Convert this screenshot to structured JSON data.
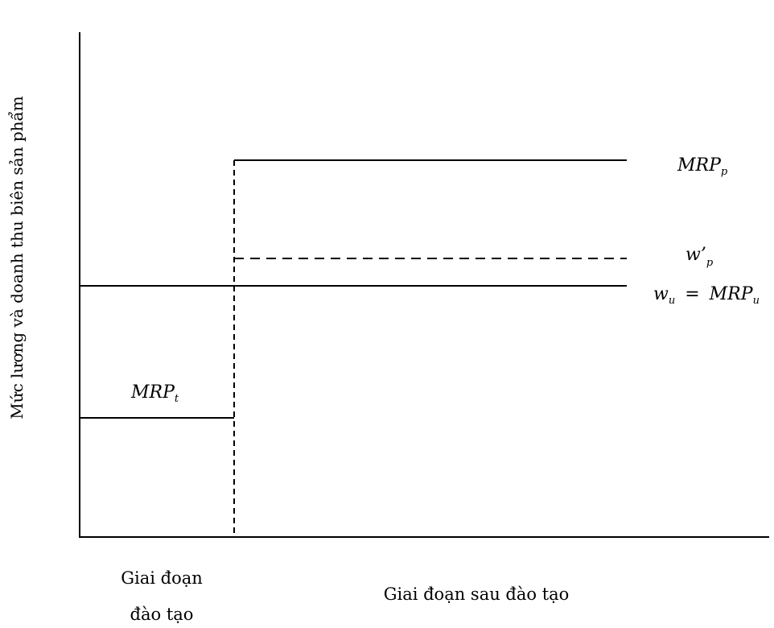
{
  "y_axis_label": "Mức lương và doanh thu biên sản phẩm",
  "x_labels": {
    "training_line1": "Giai đoạn",
    "training_line2": "đào tạo",
    "post_training": "Giai đoạn sau đào tạo"
  },
  "curves": {
    "mrp_p": {
      "main": "MRP",
      "sub": "p"
    },
    "w_p": {
      "main": "w’",
      "sub": "p"
    },
    "w_u": {
      "main": "w",
      "sub": "u",
      "equals": "=",
      "rhs_main": "MRP",
      "rhs_sub": "u"
    },
    "mrp_t": {
      "main": "MRP",
      "sub": "t"
    }
  }
}
